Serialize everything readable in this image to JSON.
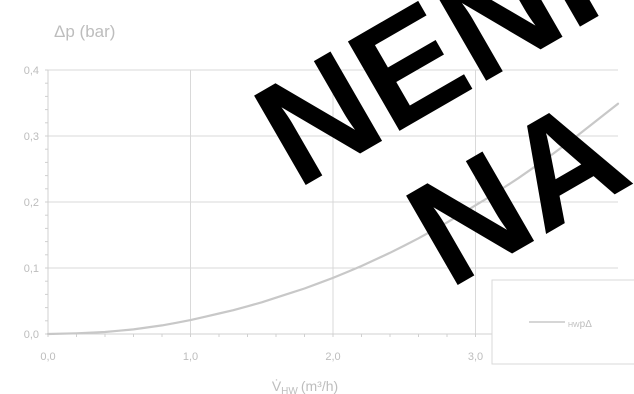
{
  "chart_data": {
    "type": "line",
    "ylabel": "Δp (bar)",
    "xlabel_base": "V̇",
    "xlabel_sub": "HW",
    "xlabel_unit": "(m³/h)",
    "xlim": [
      0,
      4.0
    ],
    "ylim": [
      0,
      0.4
    ],
    "x_ticks": [
      "0,0",
      "1,0",
      "2,0",
      "3,0"
    ],
    "y_ticks": [
      "0,0",
      "0,1",
      "0,2",
      "0,3",
      "0,4"
    ],
    "grid": true,
    "legend_placement": "bottom-right",
    "series": [
      {
        "legend_main": "pΔ",
        "legend_sub": "HW",
        "color": "#c8c8c8",
        "x": [
          0.0,
          0.2,
          0.4,
          0.5,
          0.6,
          0.7,
          0.8,
          0.9,
          1.0,
          1.1,
          1.2,
          1.3,
          1.4,
          1.5,
          1.6,
          1.7,
          1.8,
          1.9,
          2.0,
          2.1,
          2.2,
          2.3,
          2.4,
          2.5,
          2.6,
          2.7,
          2.8,
          2.9,
          3.0,
          3.1,
          3.2,
          3.3,
          3.4,
          3.5,
          3.6,
          3.7,
          3.8,
          3.9,
          4.0
        ],
        "y": [
          0.0,
          0.001,
          0.003,
          0.005,
          0.007,
          0.01,
          0.013,
          0.017,
          0.021,
          0.026,
          0.031,
          0.036,
          0.042,
          0.048,
          0.055,
          0.062,
          0.069,
          0.077,
          0.085,
          0.094,
          0.103,
          0.113,
          0.123,
          0.134,
          0.145,
          0.157,
          0.169,
          0.182,
          0.195,
          0.208,
          0.222,
          0.236,
          0.251,
          0.266,
          0.282,
          0.298,
          0.315,
          0.332,
          0.349
        ]
      }
    ],
    "watermark": [
      "NENÍ",
      "NA"
    ]
  }
}
